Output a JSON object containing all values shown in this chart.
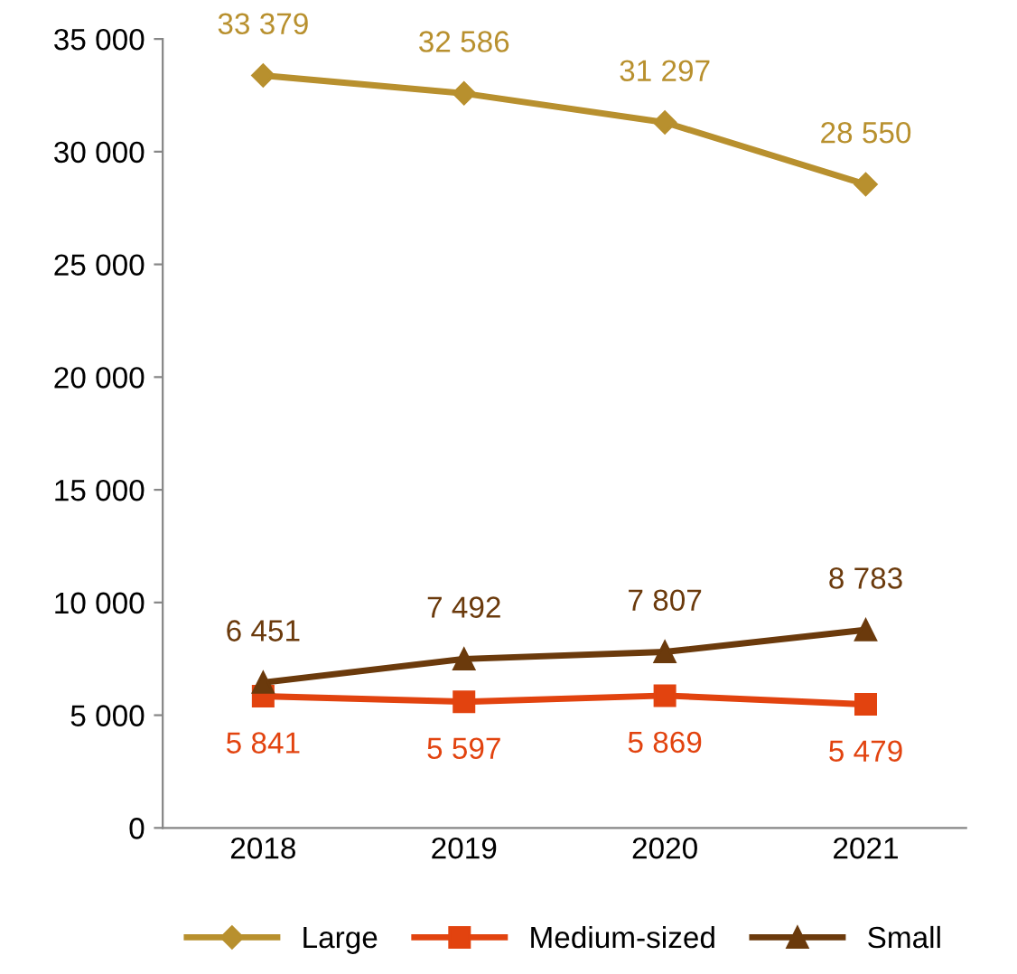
{
  "chart_data": {
    "type": "line",
    "categories": [
      "2018",
      "2019",
      "2020",
      "2021"
    ],
    "series": [
      {
        "name": "Large",
        "color": "#b8902e",
        "marker": "diamond",
        "values": [
          33379,
          32586,
          31297,
          28550
        ],
        "value_labels": [
          "33 379",
          "32 586",
          "31 297",
          "28 550"
        ]
      },
      {
        "name": "Medium-sized",
        "color": "#e2430f",
        "marker": "square",
        "values": [
          5841,
          5597,
          5869,
          5479
        ],
        "value_labels": [
          "5 841",
          "5 597",
          "5 869",
          "5 479"
        ]
      },
      {
        "name": "Small",
        "color": "#6b3a0c",
        "marker": "triangle",
        "values": [
          6451,
          7492,
          7807,
          8783
        ],
        "value_labels": [
          "6 451",
          "7 492",
          "7 807",
          "8 783"
        ]
      }
    ],
    "ylim": [
      0,
      35000
    ],
    "yticks": [
      0,
      {
        "value": 5000,
        "label": "5 000"
      },
      {
        "value": 10000,
        "label": "10 000"
      },
      {
        "value": 15000,
        "label": "15 000"
      },
      {
        "value": 20000,
        "label": "20 000"
      },
      {
        "value": 25000,
        "label": "25 000"
      },
      {
        "value": 30000,
        "label": "30 000"
      },
      {
        "value": 35000,
        "label": "35 000"
      }
    ],
    "grid": false,
    "legend": "bottom",
    "line_style": "solid"
  }
}
